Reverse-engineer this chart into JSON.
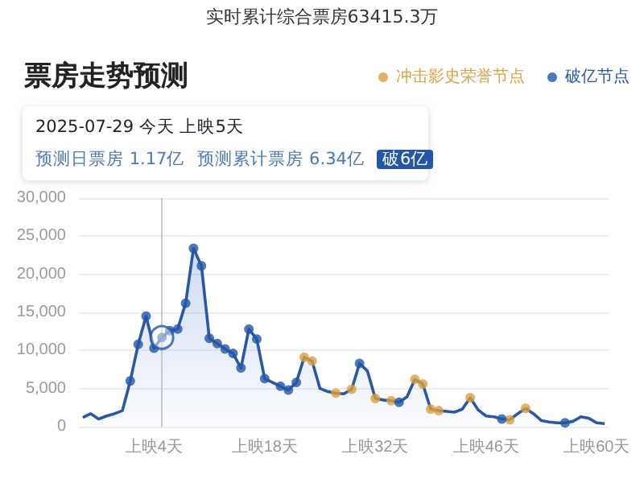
{
  "chart_data": {
    "type": "area",
    "title": "票房走势预测",
    "annotations": [
      "实时累计综合票房63415.3万",
      "2025-07-29 今天 上映5天",
      "预测日票房 1.17亿",
      "预测累计票房 6.34亿",
      "破6亿"
    ],
    "categories": [
      null,
      null,
      null,
      null,
      null,
      null,
      null,
      null,
      null,
      "上映4天",
      null,
      null,
      null,
      null,
      null,
      null,
      null,
      null,
      null,
      null,
      null,
      null,
      null,
      "上映18天",
      null,
      null,
      null,
      null,
      null,
      null,
      null,
      null,
      null,
      null,
      null,
      null,
      null,
      "上映32天",
      null,
      null,
      null,
      null,
      null,
      null,
      null,
      null,
      null,
      null,
      null,
      null,
      null,
      "上映46天",
      null,
      null,
      null,
      null,
      null,
      null,
      null,
      null,
      null,
      null,
      null,
      null,
      null,
      "上映60天",
      null
    ],
    "series": [
      {
        "color": "#2a58a6",
        "marker": "none",
        "values": [
          1200,
          1700,
          1000,
          1400,
          1700,
          2100,
          6000,
          10800,
          14500,
          10300,
          11700,
          12600,
          12800,
          16200,
          23400,
          21100,
          11600,
          10900,
          10200,
          9600,
          7700,
          12800,
          11500,
          6300,
          5800,
          5300,
          4800,
          5800,
          9100,
          8600,
          5000,
          4600,
          4400,
          4300,
          4900,
          8300,
          7300,
          3700,
          3500,
          3400,
          3200,
          3900,
          6200,
          5600,
          2300,
          2100,
          2000,
          1900,
          2300,
          3800,
          2200,
          1400,
          1300,
          1000,
          900,
          1700,
          2400,
          1700,
          800,
          600,
          500,
          500,
          700,
          1300,
          1100,
          500,
          400
        ]
      },
      {
        "type": "scatter",
        "name": "冲击影史荣誉节点",
        "color": "#dba040",
        "marker": "circle",
        "values": [
          null,
          null,
          null,
          null,
          null,
          null,
          null,
          null,
          null,
          null,
          null,
          null,
          null,
          null,
          null,
          null,
          null,
          null,
          null,
          null,
          null,
          null,
          null,
          null,
          null,
          null,
          null,
          null,
          9100,
          8600,
          null,
          null,
          4400,
          null,
          4900,
          null,
          null,
          3700,
          null,
          3400,
          null,
          null,
          6200,
          5600,
          2300,
          2100,
          null,
          null,
          null,
          3800,
          null,
          null,
          null,
          null,
          900,
          null,
          2400,
          null,
          null,
          null,
          null,
          null,
          null,
          null,
          null,
          null,
          null
        ]
      },
      {
        "type": "scatter",
        "name": "破亿节点",
        "color": "#2456a8",
        "marker": "circle",
        "values": [
          null,
          null,
          null,
          null,
          null,
          null,
          6000,
          10800,
          14500,
          10300,
          11700,
          12600,
          12800,
          16200,
          23400,
          21100,
          11600,
          10900,
          10200,
          9600,
          7700,
          12800,
          11500,
          6300,
          null,
          5300,
          4800,
          5800,
          null,
          null,
          null,
          null,
          null,
          null,
          null,
          8300,
          null,
          null,
          null,
          null,
          3200,
          null,
          null,
          null,
          null,
          null,
          null,
          null,
          null,
          null,
          null,
          null,
          null,
          1000,
          null,
          null,
          null,
          null,
          null,
          null,
          null,
          500,
          null,
          null,
          null,
          null,
          null
        ]
      },
      {
        "type": "scatter",
        "color": "#2456a8",
        "marker": "circle",
        "values": [
          null,
          null,
          null,
          null,
          null,
          null,
          null,
          null,
          null,
          null,
          11700,
          null,
          null,
          null,
          null,
          null,
          null,
          null,
          null,
          null,
          null,
          null,
          null,
          null,
          null,
          null,
          null,
          null,
          null,
          null,
          null,
          null,
          null,
          null,
          null,
          null,
          null,
          null,
          null,
          null,
          null,
          null,
          null,
          null,
          null,
          null,
          null,
          null,
          null,
          null,
          null,
          null,
          null,
          null,
          null,
          null,
          null,
          null,
          null,
          null,
          null,
          null,
          null,
          null,
          null,
          null,
          null
        ]
      }
    ],
    "ylim": [
      0,
      30000
    ],
    "yticks": [
      0,
      {
        "value": 5000,
        "label": "5,000"
      },
      {
        "value": 10000,
        "label": "10,000"
      },
      {
        "value": 15000,
        "label": "15,000"
      },
      {
        "value": 20000,
        "label": "20,000"
      },
      {
        "value": 25000,
        "label": "25,000"
      },
      {
        "value": 30000,
        "label": "30,000"
      }
    ],
    "grid": "y",
    "legend": "top right"
  }
}
